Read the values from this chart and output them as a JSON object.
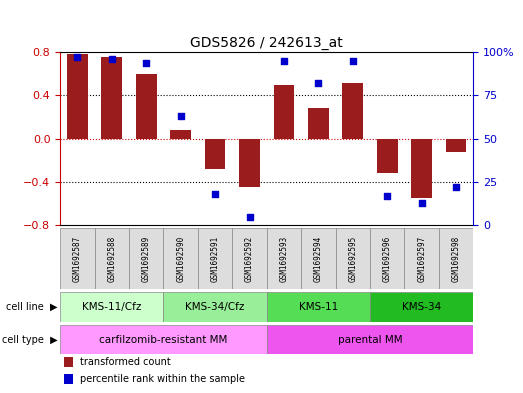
{
  "title": "GDS5826 / 242613_at",
  "samples": [
    "GSM1692587",
    "GSM1692588",
    "GSM1692589",
    "GSM1692590",
    "GSM1692591",
    "GSM1692592",
    "GSM1692593",
    "GSM1692594",
    "GSM1692595",
    "GSM1692596",
    "GSM1692597",
    "GSM1692598"
  ],
  "transformed_count": [
    0.78,
    0.76,
    0.6,
    0.08,
    -0.28,
    -0.45,
    0.5,
    0.28,
    0.52,
    -0.32,
    -0.55,
    -0.12
  ],
  "percentile_rank": [
    97,
    96,
    94,
    63,
    18,
    5,
    95,
    82,
    95,
    17,
    13,
    22
  ],
  "ylim_left": [
    -0.8,
    0.8
  ],
  "ylim_right": [
    0,
    100
  ],
  "yticks_left": [
    -0.8,
    -0.4,
    0.0,
    0.4,
    0.8
  ],
  "yticks_right": [
    0,
    25,
    50,
    75,
    100
  ],
  "ytick_labels_right": [
    "0",
    "25",
    "50",
    "75",
    "100%"
  ],
  "bar_color": "#9B1C1C",
  "dot_color": "#0000CC",
  "zero_line_color": "#CC0000",
  "cell_line_groups": [
    {
      "label": "KMS-11/Cfz",
      "start": 0,
      "end": 3,
      "color": "#CCFFCC"
    },
    {
      "label": "KMS-34/Cfz",
      "start": 3,
      "end": 6,
      "color": "#99EE99"
    },
    {
      "label": "KMS-11",
      "start": 6,
      "end": 9,
      "color": "#55DD55"
    },
    {
      "label": "KMS-34",
      "start": 9,
      "end": 12,
      "color": "#22BB22"
    }
  ],
  "cell_type_groups": [
    {
      "label": "carfilzomib-resistant MM",
      "start": 0,
      "end": 6,
      "color": "#FF99FF"
    },
    {
      "label": "parental MM",
      "start": 6,
      "end": 12,
      "color": "#EE55EE"
    }
  ],
  "legend_items": [
    {
      "label": "transformed count",
      "color": "#9B1C1C"
    },
    {
      "label": "percentile rank within the sample",
      "color": "#0000CC"
    }
  ]
}
